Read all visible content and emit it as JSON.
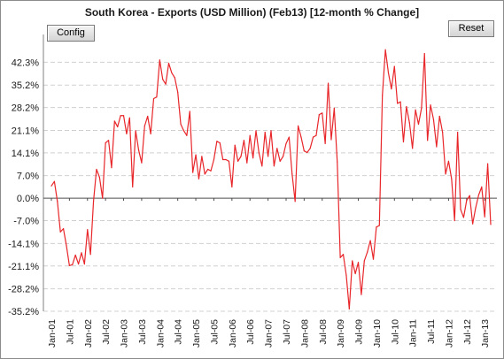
{
  "title": "South Korea - Exports (USD Million) (Feb13) [12-month % Change]",
  "buttons": {
    "config": "Config",
    "reset": "Reset"
  },
  "colors": {
    "line": "#e8262a",
    "grid": "#d0d0d0",
    "zero_line": "#4d4d4d"
  },
  "chart_data": {
    "type": "line",
    "title": "South Korea - Exports (USD Million) (Feb13) [12-month % Change]",
    "xlabel": "",
    "ylabel": "",
    "ylim": [
      -35.2,
      49.3
    ],
    "grid": true,
    "y_ticks": [
      "-35.2%",
      "-28.2%",
      "-21.1%",
      "-14.1%",
      "-7.0%",
      "0.0%",
      "7.0%",
      "14.1%",
      "21.1%",
      "28.2%",
      "35.2%",
      "42.3%"
    ],
    "y_tick_values": [
      -35.2,
      -28.2,
      -21.1,
      -14.1,
      -7.0,
      0.0,
      7.0,
      14.1,
      21.1,
      28.2,
      35.2,
      42.3
    ],
    "x_ticks": [
      "Jan-01",
      "Jul-01",
      "Jan-02",
      "Jul-02",
      "Jan-03",
      "Jul-03",
      "Jan-04",
      "Jul-04",
      "Jan-05",
      "Jul-05",
      "Jan-06",
      "Jul-06",
      "Jan-07",
      "Jul-07",
      "Jan-08",
      "Jul-08",
      "Jan-09",
      "Jul-09",
      "Jan-10",
      "Jul-10",
      "Jan-11",
      "Jul-11",
      "Jan-12",
      "Jul-12",
      "Jan-13"
    ],
    "x_start": "Jan-01",
    "x_end": "Feb-13",
    "series": [
      {
        "values": [
          3.8,
          5.2,
          -1.0,
          -10.5,
          -9.5,
          -14.8,
          -21.0,
          -20.7,
          -17.7,
          -20.5,
          -17.0,
          -20.5,
          -9.8,
          -17.5,
          -1.0,
          9.0,
          6.5,
          0.0,
          17.2,
          18.0,
          9.5,
          24.0,
          22.2,
          25.7,
          25.7,
          20.0,
          25.0,
          3.5,
          21.0,
          15.0,
          11.0,
          22.5,
          25.5,
          20.0,
          31.0,
          31.5,
          43.0,
          37.0,
          35.5,
          42.0,
          39.0,
          37.5,
          33.0,
          23.0,
          21.0,
          19.5,
          27.0,
          8.0,
          13.5,
          6.0,
          13.0,
          7.5,
          9.0,
          8.5,
          12.0,
          17.7,
          17.2,
          12.0,
          12.0,
          11.5,
          3.5,
          16.5,
          11.5,
          13.0,
          18.0,
          11.0,
          19.5,
          12.5,
          21.0,
          14.0,
          10.0,
          20.5,
          13.0,
          21.0,
          10.0,
          15.5,
          11.5,
          13.0,
          17.0,
          19.0,
          7.5,
          -1.0,
          22.5,
          19.0,
          14.7,
          14.2,
          15.5,
          19.0,
          19.5,
          26.0,
          26.5,
          17.0,
          35.8,
          18.2,
          28.0,
          11.3,
          -18.5,
          -17.5,
          -24.0,
          -34.5,
          -19.5,
          -23.5,
          -20.0,
          -30.0,
          -19.5,
          -16.8,
          -13.2,
          -19.0,
          -9.0,
          -8.5,
          32.0,
          46.2,
          39.0,
          34.0,
          41.0,
          29.5,
          30.0,
          17.5,
          28.5,
          23.5,
          15.5,
          27.5,
          23.0,
          28.0,
          45.0,
          18.0,
          29.0,
          24.5,
          16.0,
          25.5,
          20.5,
          7.5,
          11.5,
          6.0,
          -7.0,
          20.5,
          -3.5,
          -6.0,
          -0.7,
          0.8,
          -8.0,
          -3.0,
          1.0,
          3.5,
          -5.8,
          10.7,
          -8.2
        ]
      }
    ]
  }
}
